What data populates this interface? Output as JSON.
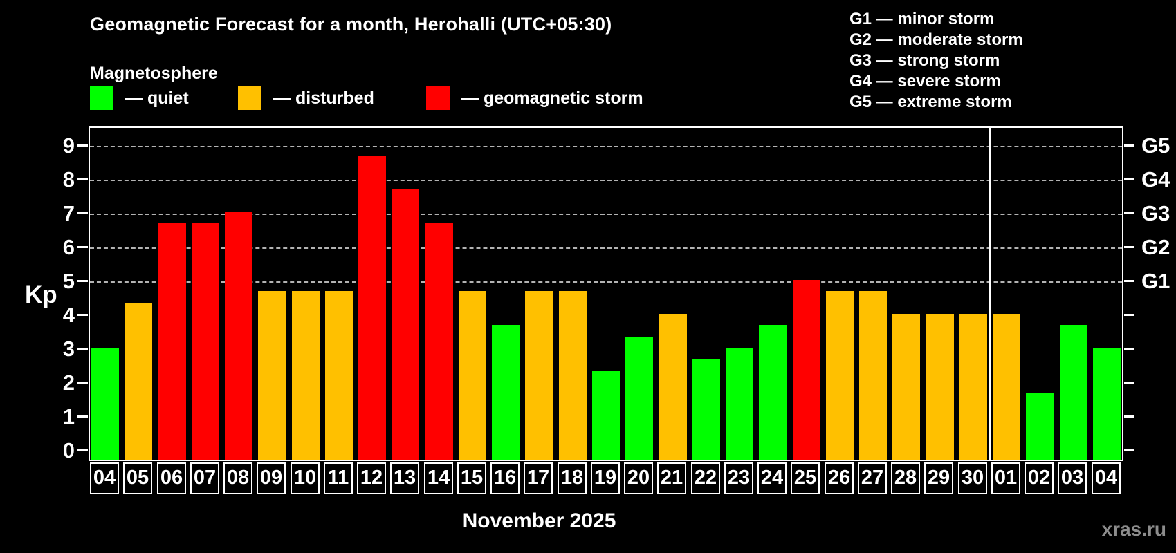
{
  "title": "Geomagnetic Forecast for a month, Herohalli (UTC+05:30)",
  "subtitle": "Magnetosphere",
  "condition_legend": [
    {
      "key": "quiet",
      "label": "— quiet",
      "color": "#00ff00"
    },
    {
      "key": "disturbed",
      "label": "— disturbed",
      "color": "#ffc000"
    },
    {
      "key": "storm",
      "label": "— geomagnetic storm",
      "color": "#ff0000"
    }
  ],
  "storm_scale_legend": [
    "G1 — minor storm",
    "G2 — moderate storm",
    "G3 — strong storm",
    "G4 — severe storm",
    "G5 — extreme storm"
  ],
  "watermark": "xras.ru",
  "chart_data": {
    "type": "bar",
    "ylabel": "Kp",
    "xlabel": "November 2025",
    "ylim": [
      0,
      9
    ],
    "y_ticks": [
      0,
      1,
      2,
      3,
      4,
      5,
      6,
      7,
      8,
      9
    ],
    "gridlines_at": [
      5,
      6,
      7,
      8,
      9
    ],
    "grid": "dashed horizontal lines at G-storm levels only",
    "legend_position": "top-left",
    "right_axis_labels": [
      {
        "kp": 5,
        "label": "G1"
      },
      {
        "kp": 6,
        "label": "G2"
      },
      {
        "kp": 7,
        "label": "G3"
      },
      {
        "kp": 8,
        "label": "G4"
      },
      {
        "kp": 9,
        "label": "G5"
      }
    ],
    "month_separator_after_index": 26,
    "days": [
      {
        "day": "04",
        "kp": 3.0,
        "status": "quiet"
      },
      {
        "day": "05",
        "kp": 4.33,
        "status": "disturbed"
      },
      {
        "day": "06",
        "kp": 6.67,
        "status": "storm"
      },
      {
        "day": "07",
        "kp": 6.67,
        "status": "storm"
      },
      {
        "day": "08",
        "kp": 7.0,
        "status": "storm"
      },
      {
        "day": "09",
        "kp": 4.67,
        "status": "disturbed"
      },
      {
        "day": "10",
        "kp": 4.67,
        "status": "disturbed"
      },
      {
        "day": "11",
        "kp": 4.67,
        "status": "disturbed"
      },
      {
        "day": "12",
        "kp": 8.67,
        "status": "storm"
      },
      {
        "day": "13",
        "kp": 7.67,
        "status": "storm"
      },
      {
        "day": "14",
        "kp": 6.67,
        "status": "storm"
      },
      {
        "day": "15",
        "kp": 4.67,
        "status": "disturbed"
      },
      {
        "day": "16",
        "kp": 3.67,
        "status": "quiet"
      },
      {
        "day": "17",
        "kp": 4.67,
        "status": "disturbed"
      },
      {
        "day": "18",
        "kp": 4.67,
        "status": "disturbed"
      },
      {
        "day": "19",
        "kp": 2.33,
        "status": "quiet"
      },
      {
        "day": "20",
        "kp": 3.33,
        "status": "quiet"
      },
      {
        "day": "21",
        "kp": 4.0,
        "status": "disturbed"
      },
      {
        "day": "22",
        "kp": 2.67,
        "status": "quiet"
      },
      {
        "day": "23",
        "kp": 3.0,
        "status": "quiet"
      },
      {
        "day": "24",
        "kp": 3.67,
        "status": "quiet"
      },
      {
        "day": "25",
        "kp": 5.0,
        "status": "storm"
      },
      {
        "day": "26",
        "kp": 4.67,
        "status": "disturbed"
      },
      {
        "day": "27",
        "kp": 4.67,
        "status": "disturbed"
      },
      {
        "day": "28",
        "kp": 4.0,
        "status": "disturbed"
      },
      {
        "day": "29",
        "kp": 4.0,
        "status": "disturbed"
      },
      {
        "day": "30",
        "kp": 4.0,
        "status": "disturbed"
      },
      {
        "day": "01",
        "kp": 4.0,
        "status": "disturbed"
      },
      {
        "day": "02",
        "kp": 1.67,
        "status": "quiet"
      },
      {
        "day": "03",
        "kp": 3.67,
        "status": "quiet"
      },
      {
        "day": "04",
        "kp": 3.0,
        "status": "quiet"
      }
    ]
  }
}
